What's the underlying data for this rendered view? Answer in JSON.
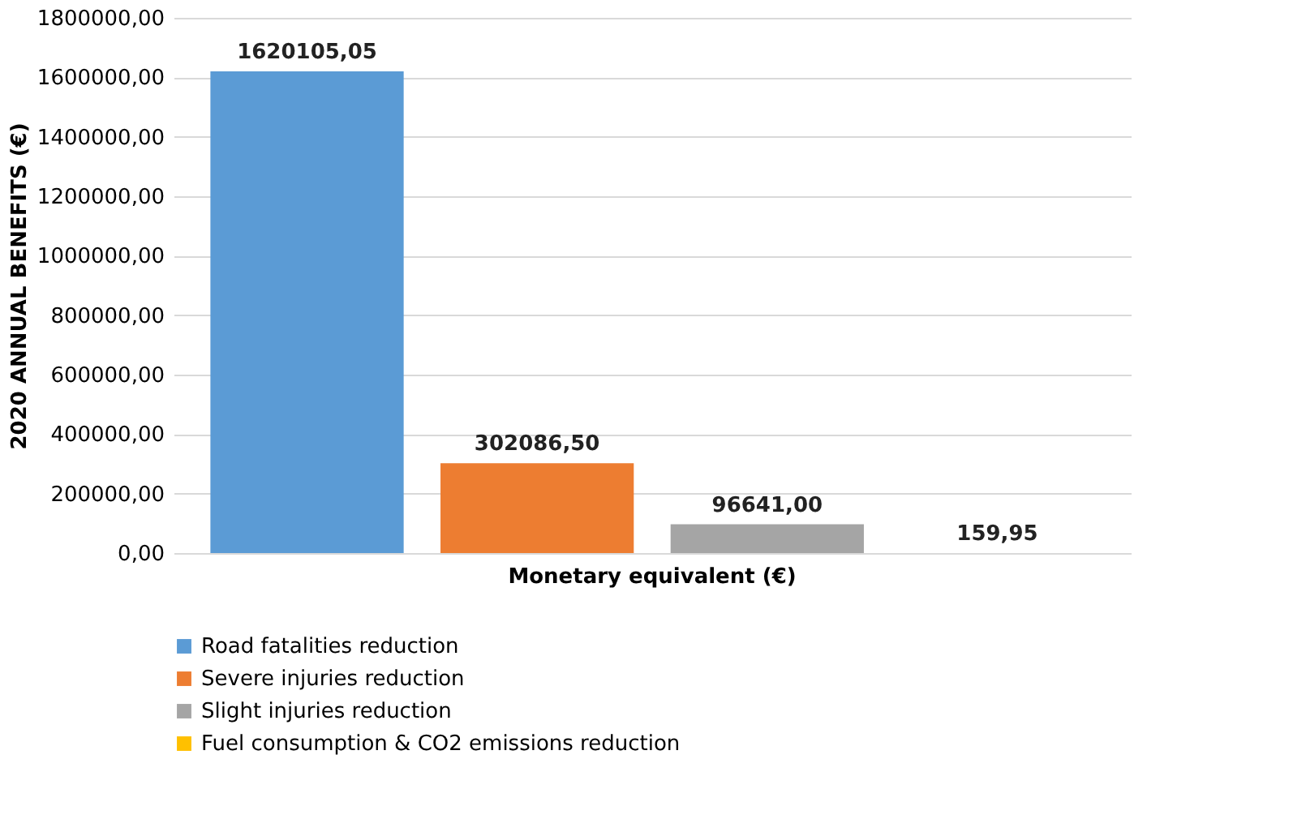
{
  "chart_data": {
    "type": "bar",
    "ylabel": "2020 ANNUAL BENEFITS (€)",
    "categories": [
      "Monetary equivalent (€)"
    ],
    "series": [
      {
        "name": "Road fatalities reduction",
        "color": "#5b9bd5",
        "values": [
          1620105.05
        ],
        "value_labels": [
          "1620105,05"
        ]
      },
      {
        "name": "Severe injuries reduction",
        "color": "#ed7d31",
        "values": [
          302086.5
        ],
        "value_labels": [
          "302086,50"
        ]
      },
      {
        "name": "Slight injuries reduction",
        "color": "#a5a5a5",
        "values": [
          96641.0
        ],
        "value_labels": [
          "96641,00"
        ]
      },
      {
        "name": "Fuel consumption & CO2 emissions reduction",
        "color": "#ffc000",
        "values": [
          159.95
        ],
        "value_labels": [
          "159,95"
        ]
      }
    ],
    "ylim": [
      0,
      1800000
    ],
    "yticks": [
      {
        "value": 0,
        "label": "0,00"
      },
      {
        "value": 200000,
        "label": "200000,00"
      },
      {
        "value": 400000,
        "label": "400000,00"
      },
      {
        "value": 600000,
        "label": "600000,00"
      },
      {
        "value": 800000,
        "label": "800000,00"
      },
      {
        "value": 1000000,
        "label": "1000000,00"
      },
      {
        "value": 1200000,
        "label": "1200000,00"
      },
      {
        "value": 1400000,
        "label": "1400000,00"
      },
      {
        "value": 1600000,
        "label": "1600000,00"
      },
      {
        "value": 1800000,
        "label": "1800000,00"
      }
    ],
    "grid": "y",
    "legend": "bottom"
  }
}
